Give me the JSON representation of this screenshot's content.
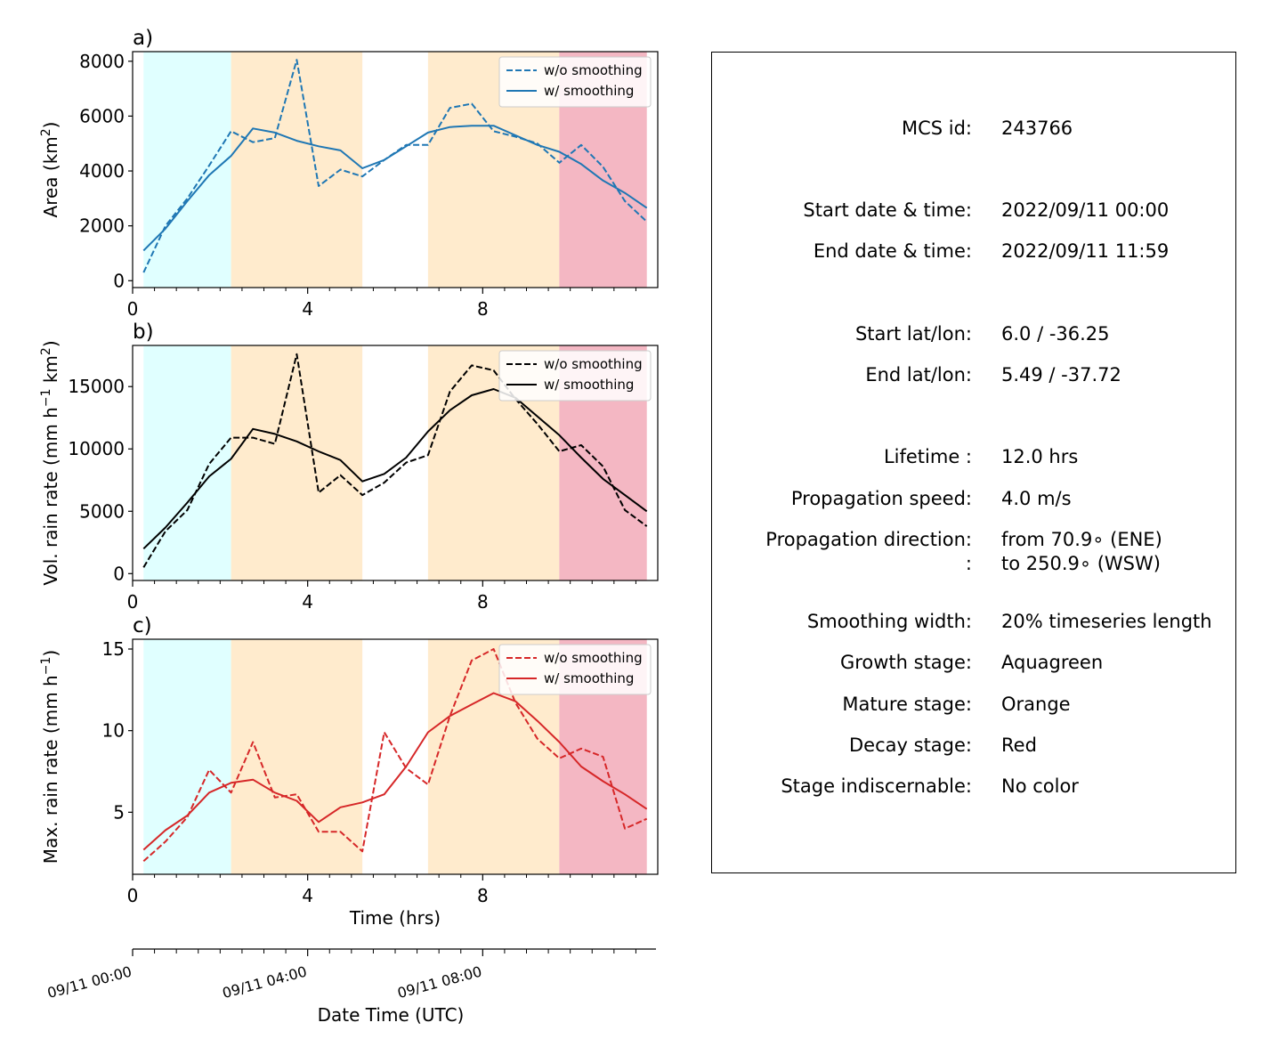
{
  "chart_data": [
    {
      "type": "line",
      "panel_label": "a)",
      "xlabel": "",
      "ylabel": "Area  (km²)",
      "ylabel_base": "Area  (km",
      "ylabel_sup": "2",
      "ylabel_tail": ")",
      "xlim": [
        0,
        12
      ],
      "ylim": [
        -250,
        8350
      ],
      "xticks": [
        0,
        4,
        8
      ],
      "yticks": [
        0,
        2000,
        4000,
        6000,
        8000
      ],
      "ytick_labels": [
        "0",
        "2000",
        "4000",
        "6000",
        "8000"
      ],
      "color": "#1f77b4",
      "legend_position": "top-right",
      "x": [
        0.25,
        0.75,
        1.25,
        1.75,
        2.25,
        2.75,
        3.25,
        3.75,
        4.25,
        4.75,
        5.25,
        5.75,
        6.25,
        6.75,
        7.25,
        7.75,
        8.25,
        8.75,
        9.25,
        9.75,
        10.25,
        10.75,
        11.25,
        11.75
      ],
      "series": [
        {
          "name": "w/o smoothing",
          "style": "dashed",
          "values": [
            300,
            2000,
            3000,
            4200,
            5450,
            5050,
            5200,
            8050,
            3450,
            4050,
            3800,
            4400,
            4950,
            4950,
            6300,
            6450,
            5450,
            5250,
            5000,
            4300,
            4950,
            4150,
            2900,
            2150
          ]
        },
        {
          "name": "w/ smoothing",
          "style": "solid",
          "values": [
            1100,
            1900,
            2900,
            3850,
            4550,
            5550,
            5400,
            5100,
            4900,
            4750,
            4100,
            4400,
            4900,
            5400,
            5600,
            5650,
            5650,
            5300,
            4950,
            4700,
            4250,
            3650,
            3200,
            2650
          ]
        }
      ],
      "phases": [
        {
          "stage": "growth",
          "x0": 0.25,
          "x1": 2.25,
          "color": "#e0ffff"
        },
        {
          "stage": "mature",
          "x0": 2.25,
          "x1": 5.25,
          "color": "#ffebcd"
        },
        {
          "stage": "mature",
          "x0": 6.75,
          "x1": 9.75,
          "color": "#ffebcd"
        },
        {
          "stage": "decay",
          "x0": 9.75,
          "x1": 11.75,
          "color": "#f4b7c3"
        }
      ]
    },
    {
      "type": "line",
      "panel_label": "b)",
      "xlabel": "",
      "ylabel": "Vol. rain rate (mm h⁻¹ km²)",
      "ylabel_base": "Vol. rain rate (mm h",
      "ylabel_sup": "−1",
      "ylabel_mid": " km",
      "ylabel_sup2": "2",
      "ylabel_tail": ")",
      "xlim": [
        0,
        12
      ],
      "ylim": [
        -550,
        18300
      ],
      "xticks": [
        0,
        4,
        8
      ],
      "yticks": [
        0,
        5000,
        10000,
        15000
      ],
      "ytick_labels": [
        "0",
        "5000",
        "10000",
        "15000"
      ],
      "color": "#000000",
      "legend_position": "top-right",
      "x": [
        0.25,
        0.75,
        1.25,
        1.75,
        2.25,
        2.75,
        3.25,
        3.75,
        4.25,
        4.75,
        5.25,
        5.75,
        6.25,
        6.75,
        7.25,
        7.75,
        8.25,
        8.75,
        9.25,
        9.75,
        10.25,
        10.75,
        11.25,
        11.75
      ],
      "series": [
        {
          "name": "w/o smoothing",
          "style": "dashed",
          "values": [
            500,
            3400,
            5100,
            8800,
            10900,
            10900,
            10400,
            17600,
            6500,
            7900,
            6300,
            7300,
            8900,
            9500,
            14600,
            16700,
            16300,
            14000,
            12000,
            9800,
            10300,
            8600,
            5100,
            3800
          ]
        },
        {
          "name": "w/ smoothing",
          "style": "solid",
          "values": [
            2000,
            3700,
            5700,
            7800,
            9200,
            11600,
            11200,
            10600,
            9800,
            9100,
            7400,
            8000,
            9300,
            11400,
            13100,
            14300,
            14800,
            14100,
            12600,
            11100,
            9300,
            7600,
            6300,
            5000
          ]
        }
      ],
      "phases": [
        {
          "stage": "growth",
          "x0": 0.25,
          "x1": 2.25,
          "color": "#e0ffff"
        },
        {
          "stage": "mature",
          "x0": 2.25,
          "x1": 5.25,
          "color": "#ffebcd"
        },
        {
          "stage": "mature",
          "x0": 6.75,
          "x1": 9.75,
          "color": "#ffebcd"
        },
        {
          "stage": "decay",
          "x0": 9.75,
          "x1": 11.75,
          "color": "#f4b7c3"
        }
      ]
    },
    {
      "type": "line",
      "panel_label": "c)",
      "xlabel": "Time (hrs)",
      "ylabel": "Max. rain rate  (mm h⁻¹)",
      "ylabel_base": "Max. rain rate  (mm h",
      "ylabel_sup": "−1",
      "ylabel_tail": ")",
      "xlim": [
        0,
        12
      ],
      "ylim": [
        1.2,
        15.6
      ],
      "xticks": [
        0,
        4,
        8
      ],
      "yticks": [
        5,
        10,
        15
      ],
      "ytick_labels": [
        "5",
        "10",
        "15"
      ],
      "color": "#d62728",
      "legend_position": "top-right",
      "x": [
        0.25,
        0.75,
        1.25,
        1.75,
        2.25,
        2.75,
        3.25,
        3.75,
        4.25,
        4.75,
        5.25,
        5.75,
        6.25,
        6.75,
        7.25,
        7.75,
        8.25,
        8.75,
        9.25,
        9.75,
        10.25,
        10.75,
        11.25,
        11.75
      ],
      "series": [
        {
          "name": "w/o smoothing",
          "style": "dashed",
          "values": [
            2.0,
            3.2,
            4.7,
            7.6,
            6.2,
            9.3,
            5.9,
            6.1,
            3.8,
            3.8,
            2.6,
            9.9,
            7.7,
            6.7,
            10.9,
            14.3,
            15.0,
            11.7,
            9.5,
            8.3,
            8.9,
            8.4,
            4.0,
            4.6
          ]
        },
        {
          "name": "w/ smoothing",
          "style": "solid",
          "values": [
            2.7,
            3.9,
            4.8,
            6.2,
            6.8,
            7.0,
            6.2,
            5.7,
            4.4,
            5.3,
            5.6,
            6.1,
            7.8,
            9.9,
            10.9,
            11.6,
            12.3,
            11.8,
            10.6,
            9.3,
            7.8,
            6.9,
            6.1,
            5.2
          ]
        }
      ],
      "phases": [
        {
          "stage": "growth",
          "x0": 0.25,
          "x1": 2.25,
          "color": "#e0ffff"
        },
        {
          "stage": "mature",
          "x0": 2.25,
          "x1": 5.25,
          "color": "#ffebcd"
        },
        {
          "stage": "mature",
          "x0": 6.75,
          "x1": 9.75,
          "color": "#ffebcd"
        },
        {
          "stage": "decay",
          "x0": 9.75,
          "x1": 11.75,
          "color": "#f4b7c3"
        }
      ]
    }
  ],
  "datetime_axis": {
    "xlabel": "Date Time (UTC)",
    "xlim": [
      0,
      12
    ],
    "major_ticks": [
      0,
      4,
      8
    ],
    "major_labels": [
      "09/11 00:00",
      "09/11 04:00",
      "09/11 08:00"
    ],
    "minor_step_hours": 0.5
  },
  "info": {
    "rows": [
      {
        "key": "MCS id:",
        "value": "243766"
      },
      {
        "key": "Start date & time:",
        "value": "2022/09/11 00:00"
      },
      {
        "key": "End date & time:",
        "value": "2022/09/11 11:59"
      },
      {
        "key": "Start lat/lon:",
        "value": "6.0 / -36.25"
      },
      {
        "key": "End lat/lon:",
        "value": "5.49 / -37.72"
      },
      {
        "key": "Lifetime :",
        "value": "12.0 hrs"
      },
      {
        "key": "Propagation speed:",
        "value": "4.0 m/s"
      },
      {
        "key": "Propagation direction:",
        "value": "from  70.9∘ (ENE)"
      },
      {
        "key": ":",
        "value": "to   250.9∘ (WSW)"
      },
      {
        "key": "Smoothing width:",
        "value": "20% timeseries length"
      },
      {
        "key": "Growth stage:",
        "value": "Aquagreen"
      },
      {
        "key": "Mature stage:",
        "value": "Orange"
      },
      {
        "key": "Decay stage:",
        "value": "Red"
      },
      {
        "key": "Stage indiscernable:",
        "value": "No color"
      }
    ]
  }
}
